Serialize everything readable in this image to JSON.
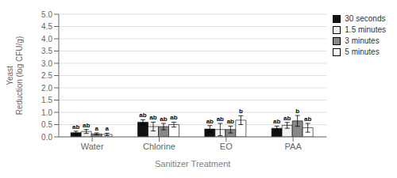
{
  "chart_data": {
    "type": "bar",
    "title": "",
    "xlabel": "Sanitizer Treatment",
    "ylabel": "Yeast\nReduction (log CFU/g)",
    "categories": [
      "Water",
      "Chlorine",
      "EO",
      "PAA"
    ],
    "series": [
      {
        "name": "30 seconds",
        "color": "#111111",
        "values": [
          0.17,
          0.6,
          0.32,
          0.35
        ],
        "errors": [
          0.06,
          0.1,
          0.14,
          0.09
        ],
        "annotations": [
          "ab",
          "ab",
          "ab",
          "ab"
        ]
      },
      {
        "name": "1.5 minutes",
        "color": "#f2f2f2",
        "values": [
          0.22,
          0.42,
          0.3,
          0.47
        ],
        "errors": [
          0.08,
          0.18,
          0.25,
          0.12
        ],
        "annotations": [
          "ab",
          "ab",
          "ab",
          "ab"
        ]
      },
      {
        "name": "3 minutes",
        "color": "#888888",
        "values": [
          0.12,
          0.42,
          0.3,
          0.65
        ],
        "errors": [
          0.04,
          0.13,
          0.14,
          0.22
        ],
        "annotations": [
          "a",
          "ab",
          "ab",
          "b"
        ]
      },
      {
        "name": "5 minutes",
        "color": "#ffffff",
        "values": [
          0.1,
          0.5,
          0.68,
          0.37
        ],
        "errors": [
          0.05,
          0.1,
          0.18,
          0.18
        ],
        "annotations": [
          "a",
          "ab",
          "b",
          "ab"
        ]
      }
    ],
    "ylim": [
      0.0,
      5.0
    ],
    "yticks": [
      {
        "value": 0,
        "label": "0.0"
      },
      0.5,
      {
        "value": 1,
        "label": "1.0"
      },
      1.5,
      {
        "value": 2,
        "label": "2.0"
      },
      2.5,
      {
        "value": 3,
        "label": "3.0"
      },
      3.5,
      {
        "value": 4,
        "label": "4.0"
      },
      4.5,
      {
        "value": 5,
        "label": "5.0"
      }
    ],
    "grid": true,
    "legend": "upper right"
  }
}
